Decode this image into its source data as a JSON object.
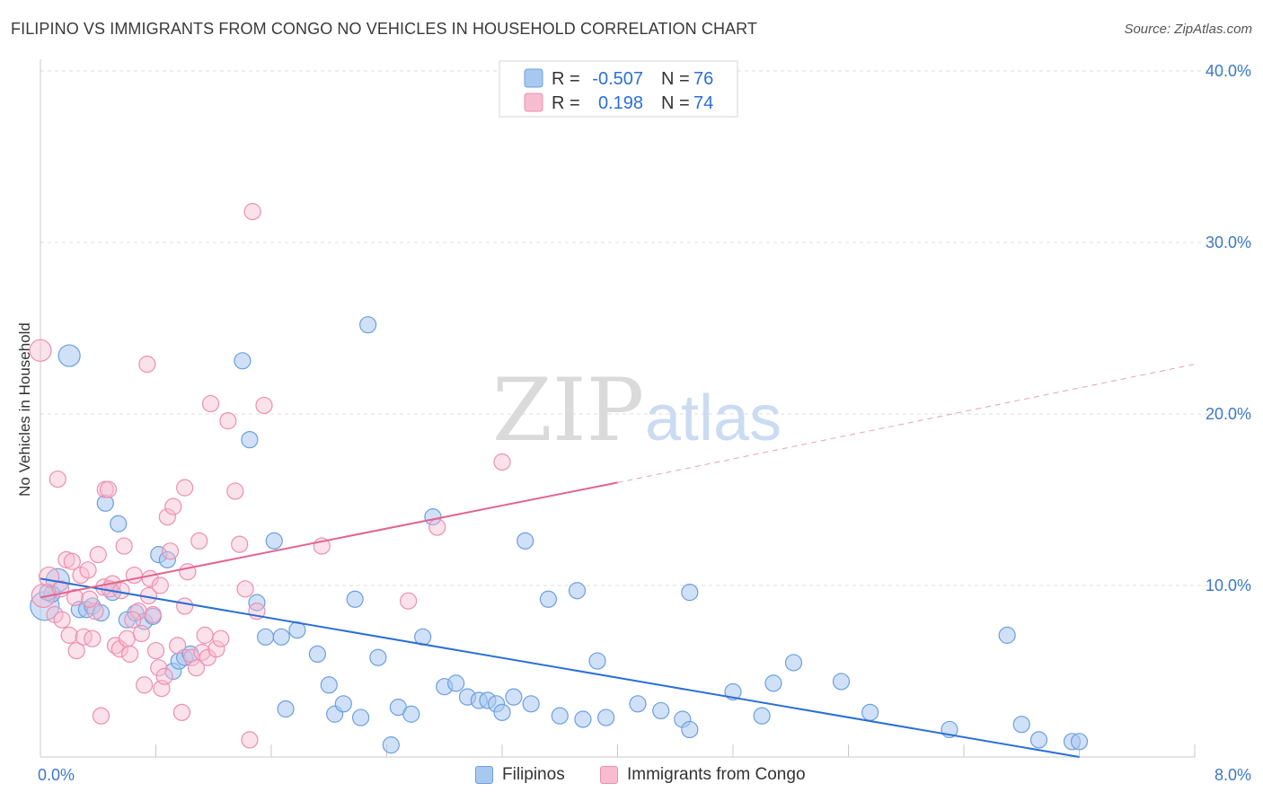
{
  "title": "FILIPINO VS IMMIGRANTS FROM CONGO NO VEHICLES IN HOUSEHOLD CORRELATION CHART",
  "source": "Source: ZipAtlas.com",
  "watermark": {
    "zip": "ZIP",
    "atlas": "atlas"
  },
  "colors": {
    "blue_fill": "#a9c8f0",
    "blue_stroke": "#6b9fe0",
    "blue_line": "#2b6fd6",
    "pink_fill": "#f7bcd0",
    "pink_stroke": "#ec8fb0",
    "pink_line": "#e2648f",
    "tick_text": "#3b78c8",
    "value_text": "#2b6fd6"
  },
  "legend": {
    "r_label": "R =",
    "n_label": "N =",
    "rows": [
      {
        "series": "Filipinos",
        "r": "-0.507",
        "n": "76"
      },
      {
        "series": "Immigrants from Congo",
        "r": "0.198",
        "n": "74"
      }
    ]
  },
  "chart_data": {
    "type": "scatter",
    "title": "FILIPINO VS IMMIGRANTS FROM CONGO NO VEHICLES IN HOUSEHOLD CORRELATION CHART",
    "xlabel": "",
    "ylabel": "No Vehicles in Household",
    "xlim": [
      0,
      8
    ],
    "ylim": [
      0,
      40
    ],
    "x_tick_labels": [
      "0.0%",
      "8.0%"
    ],
    "y_ticks": [
      10,
      20,
      30,
      40
    ],
    "y_tick_labels": [
      "10.0%",
      "20.0%",
      "30.0%",
      "40.0%"
    ],
    "grid": true,
    "legend_position": "top-center",
    "series": [
      {
        "name": "Filipinos",
        "color": "#a9c8f0",
        "trend": {
          "x0": 0.0,
          "y0": 10.4,
          "x1": 7.2,
          "y1": 0.0,
          "dashed_to": 7.2
        },
        "points": [
          [
            0.03,
            8.8,
            16
          ],
          [
            0.12,
            10.3,
            13
          ],
          [
            0.2,
            23.4,
            12
          ],
          [
            0.08,
            9.5,
            9
          ],
          [
            0.27,
            8.6,
            9
          ],
          [
            0.32,
            8.6,
            9
          ],
          [
            0.36,
            8.8,
            9
          ],
          [
            0.42,
            8.4,
            9
          ],
          [
            0.45,
            14.8,
            9
          ],
          [
            0.5,
            9.6,
            9
          ],
          [
            0.54,
            13.6,
            9
          ],
          [
            0.6,
            8.0,
            9
          ],
          [
            0.66,
            8.4,
            9
          ],
          [
            0.72,
            7.9,
            9
          ],
          [
            0.78,
            8.2,
            9
          ],
          [
            0.82,
            11.8,
            9
          ],
          [
            0.88,
            11.5,
            9
          ],
          [
            0.92,
            5.0,
            9
          ],
          [
            0.96,
            5.6,
            9
          ],
          [
            1.0,
            5.8,
            9
          ],
          [
            1.04,
            6.0,
            9
          ],
          [
            1.4,
            23.1,
            9
          ],
          [
            1.45,
            18.5,
            9
          ],
          [
            1.5,
            9.0,
            9
          ],
          [
            1.56,
            7.0,
            9
          ],
          [
            1.62,
            12.6,
            9
          ],
          [
            1.67,
            7.0,
            9
          ],
          [
            1.7,
            2.8,
            9
          ],
          [
            1.78,
            7.4,
            9
          ],
          [
            1.92,
            6.0,
            9
          ],
          [
            2.0,
            4.2,
            9
          ],
          [
            2.04,
            2.5,
            9
          ],
          [
            2.1,
            3.1,
            9
          ],
          [
            2.18,
            9.2,
            9
          ],
          [
            2.22,
            2.3,
            9
          ],
          [
            2.27,
            25.2,
            9
          ],
          [
            2.34,
            5.8,
            9
          ],
          [
            2.43,
            0.7,
            9
          ],
          [
            2.48,
            2.9,
            9
          ],
          [
            2.57,
            2.5,
            9
          ],
          [
            2.65,
            7.0,
            9
          ],
          [
            2.72,
            14.0,
            9
          ],
          [
            2.8,
            4.1,
            9
          ],
          [
            2.88,
            4.3,
            9
          ],
          [
            2.96,
            3.5,
            9
          ],
          [
            3.04,
            3.3,
            9
          ],
          [
            3.1,
            3.3,
            9
          ],
          [
            3.16,
            3.1,
            9
          ],
          [
            3.2,
            2.6,
            9
          ],
          [
            3.28,
            3.5,
            9
          ],
          [
            3.36,
            12.6,
            9
          ],
          [
            3.4,
            3.1,
            9
          ],
          [
            3.52,
            9.2,
            9
          ],
          [
            3.6,
            2.4,
            9
          ],
          [
            3.72,
            9.7,
            9
          ],
          [
            3.76,
            2.2,
            9
          ],
          [
            3.86,
            5.6,
            9
          ],
          [
            3.92,
            2.3,
            9
          ],
          [
            4.14,
            3.1,
            9
          ],
          [
            4.3,
            2.7,
            9
          ],
          [
            4.45,
            2.2,
            9
          ],
          [
            4.5,
            9.6,
            9
          ],
          [
            4.5,
            1.6,
            9
          ],
          [
            4.8,
            3.8,
            9
          ],
          [
            5.0,
            2.4,
            9
          ],
          [
            5.08,
            4.3,
            9
          ],
          [
            5.22,
            5.5,
            9
          ],
          [
            5.55,
            4.4,
            9
          ],
          [
            5.75,
            2.6,
            9
          ],
          [
            6.3,
            1.6,
            9
          ],
          [
            6.7,
            7.1,
            9
          ],
          [
            6.8,
            1.9,
            9
          ],
          [
            6.92,
            1.0,
            9
          ],
          [
            7.15,
            0.9,
            9
          ],
          [
            7.2,
            0.9,
            9
          ],
          [
            0.05,
            9.6,
            9
          ]
        ]
      },
      {
        "name": "Immigrants from Congo",
        "color": "#f7bcd0",
        "trend": {
          "x0": 0.0,
          "y0": 9.3,
          "x1": 4.0,
          "y1": 16.0,
          "dashed_to": 8.0,
          "y_end": 22.9
        },
        "points": [
          [
            0.0,
            23.7,
            12
          ],
          [
            0.02,
            9.4,
            13
          ],
          [
            0.06,
            10.5,
            11
          ],
          [
            0.1,
            8.3,
            9
          ],
          [
            0.12,
            16.2,
            9
          ],
          [
            0.15,
            8.0,
            9
          ],
          [
            0.18,
            11.5,
            9
          ],
          [
            0.2,
            7.1,
            9
          ],
          [
            0.22,
            11.4,
            9
          ],
          [
            0.25,
            6.2,
            9
          ],
          [
            0.28,
            10.6,
            9
          ],
          [
            0.3,
            7.0,
            9
          ],
          [
            0.33,
            10.9,
            9
          ],
          [
            0.36,
            6.9,
            9
          ],
          [
            0.38,
            8.5,
            9
          ],
          [
            0.4,
            11.8,
            9
          ],
          [
            0.42,
            2.4,
            9
          ],
          [
            0.44,
            9.9,
            9
          ],
          [
            0.45,
            15.6,
            9
          ],
          [
            0.47,
            15.6,
            9
          ],
          [
            0.5,
            10.1,
            9
          ],
          [
            0.52,
            6.5,
            9
          ],
          [
            0.55,
            6.3,
            9
          ],
          [
            0.58,
            12.3,
            9
          ],
          [
            0.6,
            6.9,
            9
          ],
          [
            0.62,
            6.0,
            9
          ],
          [
            0.65,
            10.6,
            9
          ],
          [
            0.68,
            8.5,
            9
          ],
          [
            0.7,
            7.2,
            9
          ],
          [
            0.72,
            4.2,
            9
          ],
          [
            0.74,
            22.9,
            9
          ],
          [
            0.76,
            10.4,
            9
          ],
          [
            0.78,
            8.3,
            9
          ],
          [
            0.8,
            6.2,
            9
          ],
          [
            0.82,
            5.2,
            9
          ],
          [
            0.84,
            4.0,
            9
          ],
          [
            0.86,
            4.7,
            9
          ],
          [
            0.88,
            14.0,
            9
          ],
          [
            0.9,
            12.0,
            9
          ],
          [
            0.92,
            14.6,
            9
          ],
          [
            0.95,
            6.5,
            9
          ],
          [
            0.98,
            2.6,
            9
          ],
          [
            1.0,
            15.7,
            9
          ],
          [
            1.02,
            10.8,
            9
          ],
          [
            1.05,
            5.8,
            9
          ],
          [
            1.08,
            5.2,
            9
          ],
          [
            1.1,
            12.6,
            9
          ],
          [
            1.12,
            6.1,
            9
          ],
          [
            1.14,
            7.1,
            9
          ],
          [
            1.16,
            5.8,
            9
          ],
          [
            1.18,
            20.6,
            9
          ],
          [
            1.22,
            6.3,
            9
          ],
          [
            1.3,
            19.6,
            9
          ],
          [
            1.35,
            15.5,
            9
          ],
          [
            1.38,
            12.4,
            9
          ],
          [
            1.42,
            9.8,
            9
          ],
          [
            1.45,
            1.0,
            9
          ],
          [
            1.47,
            31.8,
            9
          ],
          [
            1.5,
            8.5,
            9
          ],
          [
            1.55,
            20.5,
            9
          ],
          [
            1.95,
            12.3,
            9
          ],
          [
            2.55,
            9.1,
            9
          ],
          [
            2.75,
            13.4,
            9
          ],
          [
            3.2,
            17.2,
            9
          ],
          [
            0.14,
            9.8,
            9
          ],
          [
            0.24,
            9.3,
            9
          ],
          [
            0.34,
            9.2,
            9
          ],
          [
            0.48,
            9.8,
            9
          ],
          [
            0.56,
            9.7,
            9
          ],
          [
            0.64,
            8.0,
            9
          ],
          [
            0.75,
            9.4,
            9
          ],
          [
            0.83,
            10.0,
            9
          ],
          [
            1.0,
            8.8,
            9
          ],
          [
            1.25,
            6.9,
            9
          ]
        ]
      }
    ]
  }
}
